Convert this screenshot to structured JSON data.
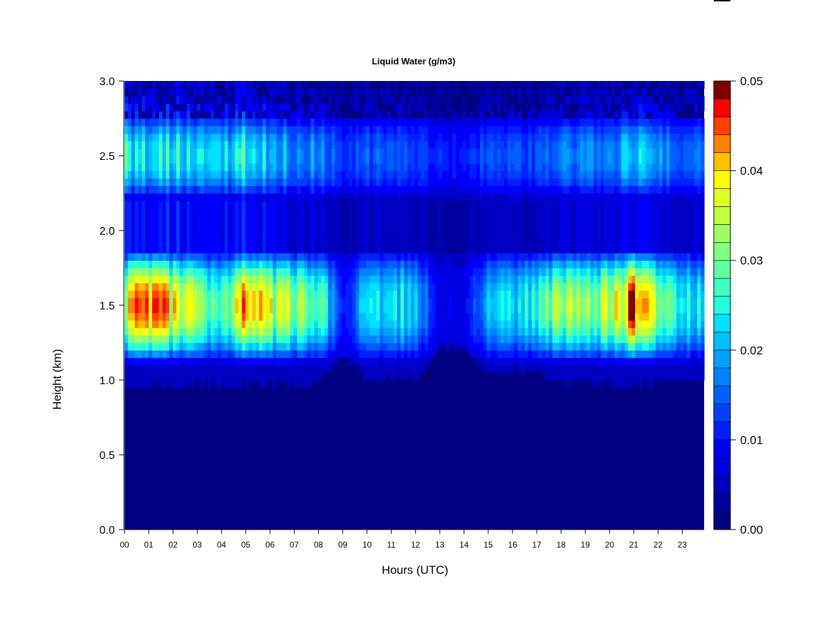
{
  "chart_data": {
    "type": "heatmap",
    "title": "Liquid Water (g/m3)",
    "xlabel": "Hours (UTC)",
    "ylabel": "Height (km)",
    "x_ticks": [
      "00",
      "01",
      "02",
      "03",
      "04",
      "05",
      "06",
      "07",
      "08",
      "09",
      "10",
      "11",
      "12",
      "13",
      "14",
      "15",
      "16",
      "17",
      "18",
      "19",
      "20",
      "21",
      "22",
      "23"
    ],
    "y_ticks": [
      "0.0",
      "0.5",
      "1.0",
      "1.5",
      "2.0",
      "2.5",
      "3.0"
    ],
    "xlim": [
      0,
      23.9
    ],
    "ylim": [
      0,
      3.0
    ],
    "colorbar": {
      "range": [
        0,
        0.05
      ],
      "levels": 25,
      "tick_labels": [
        "0.00",
        "0.01",
        "0.02",
        "0.03",
        "0.04",
        "0.05"
      ],
      "tick_values": [
        0,
        0.01,
        0.02,
        0.03,
        0.04,
        0.05
      ],
      "colors": [
        "#000080",
        "#0000a0",
        "#0000c0",
        "#0000e0",
        "#0000ff",
        "#0020ff",
        "#0040ff",
        "#0060ff",
        "#0080ff",
        "#00a0ff",
        "#00c0ff",
        "#00e0ff",
        "#20ffe0",
        "#40ffc0",
        "#60ff9f",
        "#80ff80",
        "#a0ff60",
        "#c0ff40",
        "#e0ff20",
        "#ffff00",
        "#ffc000",
        "#ff8000",
        "#ff4000",
        "#ff0000",
        "#800000"
      ]
    },
    "layers": {
      "base_band_km": [
        0.95,
        1.85
      ],
      "peak_height_km": 1.5,
      "upper_band_km": [
        2.2,
        2.75
      ],
      "upper_peak_km": 2.5
    },
    "hourly_lower_peak_g_m3": [
      0.038,
      0.04,
      0.037,
      0.031,
      0.022,
      0.044,
      0.033,
      0.031,
      0.028,
      0.006,
      0.02,
      0.022,
      0.02,
      0.004,
      0.004,
      0.018,
      0.02,
      0.022,
      0.035,
      0.03,
      0.032,
      0.043,
      0.03,
      0.022
    ],
    "hourly_upper_peak_g_m3": [
      0.024,
      0.022,
      0.025,
      0.02,
      0.018,
      0.026,
      0.019,
      0.018,
      0.016,
      0.01,
      0.012,
      0.012,
      0.012,
      0.008,
      0.008,
      0.012,
      0.012,
      0.012,
      0.016,
      0.016,
      0.016,
      0.02,
      0.016,
      0.014
    ],
    "hourly_cloud_base_km": [
      0.95,
      0.96,
      0.95,
      0.96,
      0.96,
      0.95,
      0.97,
      0.96,
      0.97,
      1.15,
      1.0,
      1.0,
      1.0,
      1.2,
      1.2,
      1.05,
      1.05,
      1.05,
      0.97,
      0.97,
      0.96,
      0.96,
      0.98,
      1.0
    ]
  }
}
